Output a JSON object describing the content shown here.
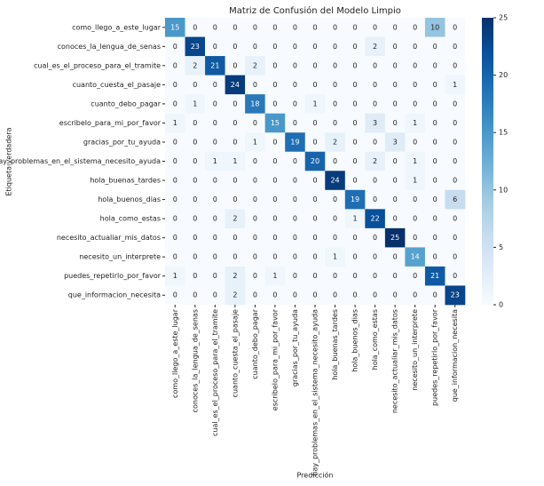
{
  "chart_data": {
    "type": "heatmap",
    "title": "Matriz de Confusión del Modelo Limpio",
    "xlabel": "Predicción",
    "ylabel": "Etiqueta verdadera",
    "categories": [
      "como_llego_a_este_lugar",
      "conoces_la_lengua_de_senas",
      "cual_es_el_proceso_para_el_tramite",
      "cuanto_cuesta_el_pasaje",
      "cuanto_debo_pagar",
      "escribelo_para_mi_por_favor",
      "gracias_por_tu_ayuda",
      "hay_problemas_en_el_sistema_necesito_ayuda",
      "hola_buenas_tardes",
      "hola_buenos_dias",
      "hola_como_estas",
      "necesito_actualiar_mis_datos",
      "necesito_un_interprete",
      "puedes_repetirlo_por_favor",
      "que_informacion_necesita"
    ],
    "values": [
      [
        15,
        0,
        0,
        0,
        0,
        0,
        0,
        0,
        0,
        0,
        0,
        0,
        0,
        10,
        0
      ],
      [
        0,
        23,
        0,
        0,
        0,
        0,
        0,
        0,
        0,
        0,
        2,
        0,
        0,
        0,
        0
      ],
      [
        0,
        2,
        21,
        0,
        2,
        0,
        0,
        0,
        0,
        0,
        0,
        0,
        0,
        0,
        0
      ],
      [
        0,
        0,
        0,
        24,
        0,
        0,
        0,
        0,
        0,
        0,
        0,
        0,
        0,
        0,
        1
      ],
      [
        0,
        1,
        0,
        0,
        18,
        0,
        0,
        1,
        0,
        0,
        0,
        0,
        0,
        0,
        0
      ],
      [
        1,
        0,
        0,
        0,
        0,
        15,
        0,
        0,
        0,
        0,
        3,
        0,
        1,
        0,
        0
      ],
      [
        0,
        0,
        0,
        0,
        1,
        0,
        19,
        0,
        2,
        0,
        0,
        3,
        0,
        0,
        0
      ],
      [
        0,
        0,
        1,
        1,
        0,
        0,
        0,
        20,
        0,
        0,
        2,
        0,
        1,
        0,
        0
      ],
      [
        0,
        0,
        0,
        0,
        0,
        0,
        0,
        0,
        24,
        0,
        0,
        0,
        1,
        0,
        0
      ],
      [
        0,
        0,
        0,
        0,
        0,
        0,
        0,
        0,
        0,
        19,
        0,
        0,
        0,
        0,
        6
      ],
      [
        0,
        0,
        0,
        2,
        0,
        0,
        0,
        0,
        0,
        1,
        22,
        0,
        0,
        0,
        0
      ],
      [
        0,
        0,
        0,
        0,
        0,
        0,
        0,
        0,
        0,
        0,
        0,
        25,
        0,
        0,
        0
      ],
      [
        0,
        0,
        0,
        0,
        0,
        0,
        0,
        0,
        1,
        0,
        0,
        0,
        14,
        0,
        0
      ],
      [
        1,
        0,
        0,
        2,
        0,
        1,
        0,
        0,
        0,
        0,
        0,
        0,
        0,
        21,
        0
      ],
      [
        0,
        0,
        0,
        2,
        0,
        0,
        0,
        0,
        0,
        0,
        0,
        0,
        0,
        0,
        23
      ]
    ],
    "colormap": "Blues",
    "clim": [
      0,
      25
    ],
    "cticks": [
      0,
      5,
      10,
      15,
      20,
      25
    ]
  }
}
